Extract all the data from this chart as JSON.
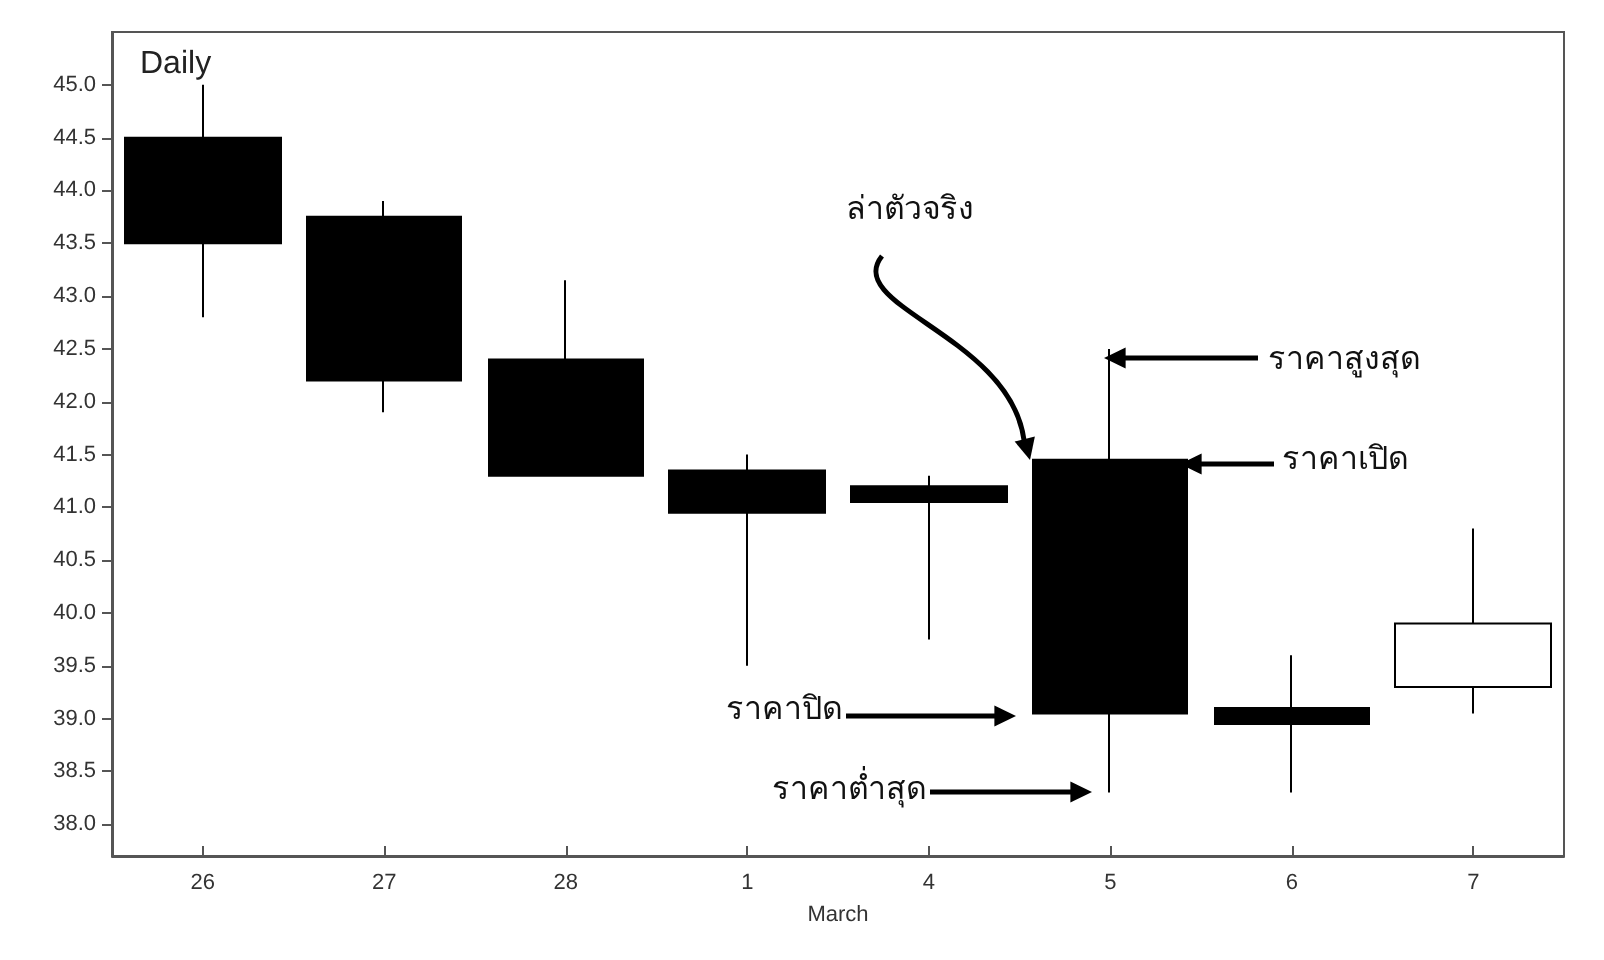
{
  "chart_data": {
    "type": "candlestick",
    "title": "Daily",
    "xlabel": "March",
    "categories": [
      "26",
      "27",
      "28",
      "1",
      "4",
      "5",
      "6",
      "7"
    ],
    "ohlc": [
      [
        44.5,
        45.0,
        42.8,
        43.5
      ],
      [
        43.75,
        43.9,
        41.9,
        42.2
      ],
      [
        42.4,
        43.15,
        41.3,
        41.3
      ],
      [
        41.35,
        41.5,
        39.5,
        40.95
      ],
      [
        41.2,
        41.3,
        39.75,
        41.05
      ],
      [
        41.45,
        42.5,
        38.3,
        39.05
      ],
      [
        39.1,
        39.6,
        38.3,
        38.95
      ],
      [
        39.3,
        40.8,
        39.05,
        39.9
      ]
    ],
    "colors": [
      "#000000",
      "#000000",
      "#000000",
      "#000000",
      "#000000",
      "#000000",
      "#000000",
      "#ffffff"
    ],
    "ylim": [
      37.7,
      45.5
    ],
    "yticks": [
      {
        "value": 38,
        "label": "38.0"
      },
      {
        "value": 38.5,
        "label": "38.5"
      },
      {
        "value": 39,
        "label": "39.0"
      },
      {
        "value": 39.5,
        "label": "39.5"
      },
      {
        "value": 40,
        "label": "40.0"
      },
      {
        "value": 40.5,
        "label": "40.5"
      },
      {
        "value": 41,
        "label": "41.0"
      },
      {
        "value": 41.5,
        "label": "41.5"
      },
      {
        "value": 42,
        "label": "42.0"
      },
      {
        "value": 42.5,
        "label": "42.5"
      },
      {
        "value": 43,
        "label": "43.0"
      },
      {
        "value": 43.5,
        "label": "43.5"
      },
      {
        "value": 44,
        "label": "44.0"
      },
      {
        "value": 44.5,
        "label": "44.5"
      },
      {
        "value": 45,
        "label": "45.0"
      }
    ],
    "grid": false,
    "annotations": [
      "ล่าตัวจริง",
      "ราคาสูงสุด",
      "ราคาเปิด",
      "ราคาปิด",
      "ราคาต่ำสุด"
    ]
  }
}
